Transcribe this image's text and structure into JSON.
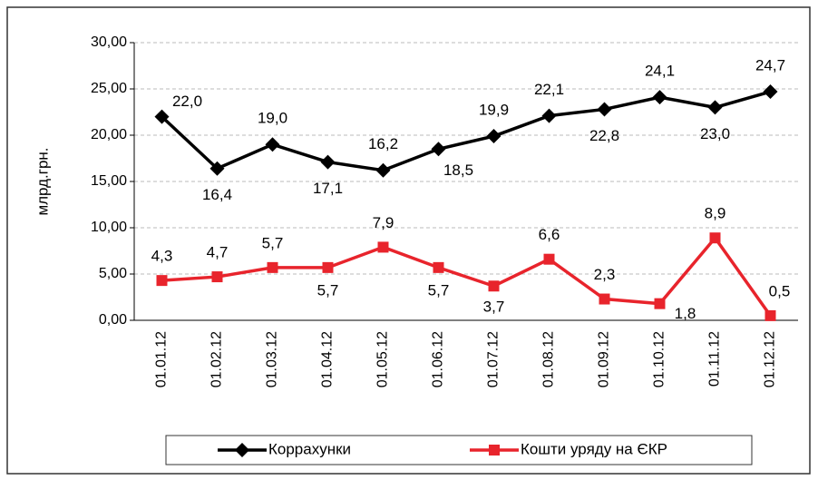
{
  "chart_data": {
    "type": "line",
    "y_label": "млрд.грн.",
    "categories": [
      "01.01.12",
      "01.02.12",
      "01.03.12",
      "01.04.12",
      "01.05.12",
      "01.06.12",
      "01.07.12",
      "01.08.12",
      "01.09.12",
      "01.10.12",
      "01.11.12",
      "01.12.12"
    ],
    "series": [
      {
        "name": "Коррахунки",
        "color": "#000000",
        "marker": "diamond",
        "values": [
          22.0,
          16.4,
          19.0,
          17.1,
          16.2,
          18.5,
          19.9,
          22.1,
          22.8,
          24.1,
          23.0,
          24.7
        ],
        "value_labels": [
          "22,0",
          "16,4",
          "19,0",
          "17,1",
          "16,2",
          "18,5",
          "19,9",
          "22,1",
          "22,8",
          "24,1",
          "23,0",
          "24,7"
        ]
      },
      {
        "name": "Кошти уряду на ЄКР",
        "color": "#e8242c",
        "marker": "square",
        "values": [
          4.3,
          4.7,
          5.7,
          5.7,
          7.9,
          5.7,
          3.7,
          6.6,
          2.3,
          1.8,
          8.9,
          0.5
        ],
        "value_labels": [
          "4,3",
          "4,7",
          "5,7",
          "5,7",
          "7,9",
          "5,7",
          "3,7",
          "6,6",
          "2,3",
          "1,8",
          "8,9",
          "0,5"
        ]
      }
    ],
    "ylim": [
      0,
      30
    ],
    "yticks": [
      {
        "value": 0,
        "label": "0,00"
      },
      {
        "value": 5,
        "label": "5,00"
      },
      {
        "value": 10,
        "label": "10,00"
      },
      {
        "value": 15,
        "label": "15,00"
      },
      {
        "value": 20,
        "label": "20,00"
      },
      {
        "value": 25,
        "label": "25,00"
      },
      {
        "value": 30,
        "label": "30,00"
      }
    ],
    "grid": true
  }
}
